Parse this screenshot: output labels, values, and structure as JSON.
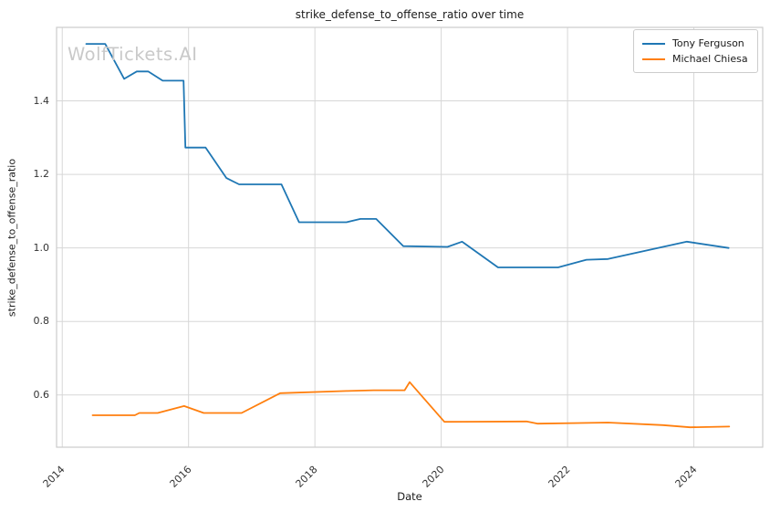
{
  "watermark": "WolfTickets.AI",
  "chart_data": {
    "type": "line",
    "title": "strike_defense_to_offense_ratio over time",
    "xlabel": "Date",
    "ylabel": "strike_defense_to_offense_ratio",
    "xlim": [
      2013.91,
      2025.09
    ],
    "ylim": [
      0.458,
      1.6
    ],
    "x_ticks": [
      2014,
      2016,
      2018,
      2020,
      2022,
      2024
    ],
    "y_ticks": [
      0.6,
      0.8,
      1.0,
      1.2,
      1.4
    ],
    "grid": true,
    "legend_position": "upper right",
    "colors": {
      "grid": "#d7d7d7",
      "spine": "#cccccc",
      "tick_text": "#333333",
      "series_blue": "#1f77b4",
      "series_orange": "#ff7f0e"
    },
    "series": [
      {
        "name": "Tony Ferguson",
        "color": "#1f77b4",
        "x": [
          2014.38,
          2014.68,
          2014.98,
          2015.18,
          2015.36,
          2015.59,
          2015.92,
          2015.95,
          2016.27,
          2016.6,
          2016.8,
          2017.47,
          2017.75,
          2018.5,
          2018.72,
          2018.97,
          2019.4,
          2020.1,
          2020.33,
          2020.9,
          2021.85,
          2022.3,
          2022.64,
          2023.89,
          2024.55
        ],
        "y": [
          1.555,
          1.555,
          1.46,
          1.48,
          1.48,
          1.455,
          1.455,
          1.273,
          1.273,
          1.19,
          1.173,
          1.173,
          1.07,
          1.07,
          1.079,
          1.079,
          1.005,
          1.003,
          1.017,
          0.947,
          0.947,
          0.968,
          0.97,
          1.017,
          1.0
        ]
      },
      {
        "name": "Michael Chiesa",
        "color": "#ff7f0e",
        "x": [
          2014.48,
          2015.15,
          2015.22,
          2015.51,
          2015.93,
          2016.24,
          2016.84,
          2017.45,
          2018.5,
          2018.93,
          2019.42,
          2019.5,
          2020.05,
          2021.35,
          2021.53,
          2022.64,
          2023.51,
          2023.94,
          2024.56
        ],
        "y": [
          0.545,
          0.545,
          0.551,
          0.551,
          0.57,
          0.551,
          0.551,
          0.605,
          0.611,
          0.613,
          0.613,
          0.635,
          0.527,
          0.528,
          0.522,
          0.525,
          0.518,
          0.512,
          0.514
        ]
      }
    ]
  }
}
